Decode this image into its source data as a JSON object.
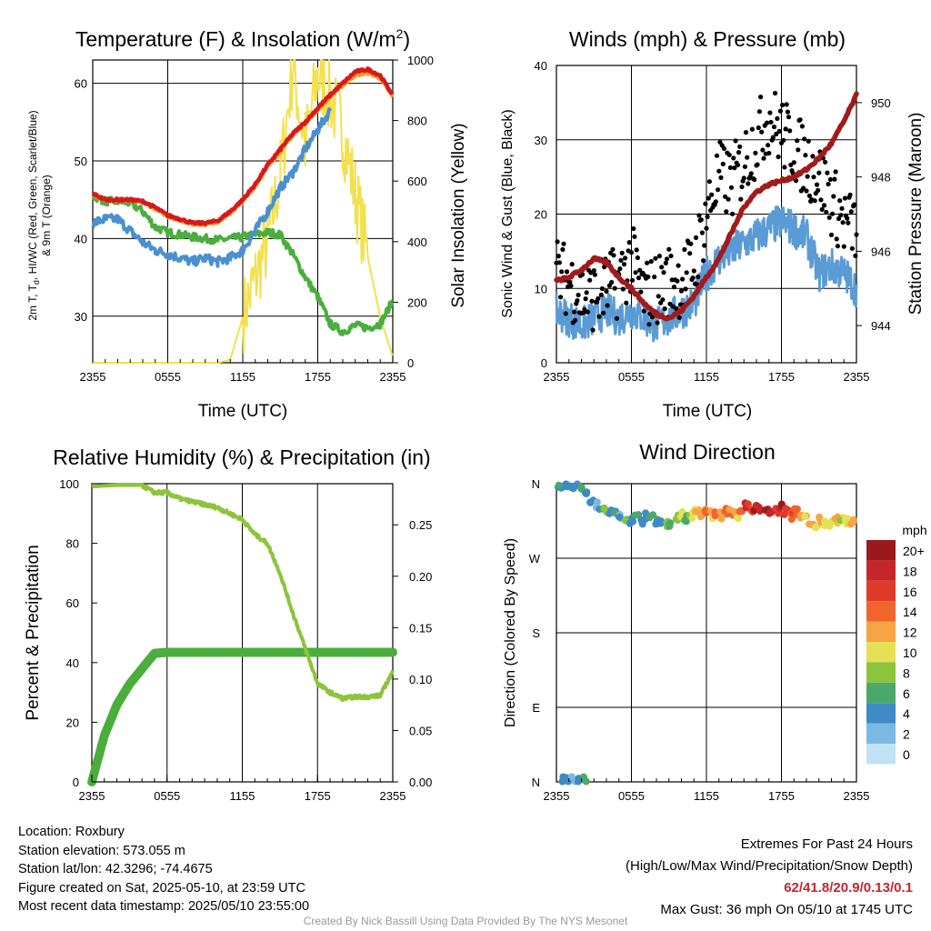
{
  "colors": {
    "air_temp": "#d7191c",
    "heat_index": "#e63b1f",
    "temp_9m": "#f59a23",
    "dewpoint": "#4aae3d",
    "wind_chill_blue": "#4a90d0",
    "insolation": "#f4e04d",
    "sonic_wind": "#5b9bd5",
    "gust": "#000000",
    "pressure": "#a31a1a",
    "rh": "#8cc43c",
    "precip": "#4aae3d"
  },
  "panels": {
    "temp": {
      "title": "Temperature (F) & Insolation (W/m²)",
      "ylabel_left_line1": "2m T, Td, HI/WC (Red, Green, Scarlet/Blue)",
      "ylabel_left_line2": "& 9m T (Orange)",
      "ylabel_right": "Solar Insolation (Yellow)",
      "xlabel": "Time (UTC)"
    },
    "wind": {
      "title": "Winds (mph) & Pressure (mb)",
      "ylabel_left": "Sonic Wind & Gust (Blue, Black)",
      "ylabel_right": "Station Pressure (Maroon)",
      "xlabel": "Time (UTC)"
    },
    "rh": {
      "title": "Relative Humidity (%) & Precipitation (in)",
      "ylabel_left": "Percent & Precipitation"
    },
    "dir": {
      "title": "Wind Direction",
      "ylabel_left": "Direction (Colored By Speed)",
      "legend_unit": "mph"
    }
  },
  "chart_data": [
    {
      "type": "line",
      "title": "Temperature (F) & Insolation (W/m²)",
      "xlabel": "Time (UTC)",
      "x_ticks": [
        "2355",
        "0555",
        "1155",
        "1755",
        "2355"
      ],
      "xlim": [
        0,
        24
      ],
      "ylim": [
        24,
        63
      ],
      "yticks": [
        30,
        40,
        50,
        60
      ],
      "y2lim": [
        0,
        1000
      ],
      "y2ticks": [
        0,
        200,
        400,
        600,
        800,
        1000
      ],
      "x": [
        0,
        1,
        2,
        3,
        4,
        5,
        6,
        7,
        8,
        9,
        10,
        11,
        12,
        13,
        14,
        15,
        16,
        17,
        18,
        19,
        20,
        21,
        22,
        23,
        24
      ],
      "series": [
        {
          "name": "2m T (Red)",
          "values": [
            45.8,
            45.0,
            45.0,
            45.0,
            44.8,
            44.0,
            43.0,
            42.5,
            42.0,
            42.0,
            42.3,
            43.5,
            45.0,
            47.0,
            49.5,
            51.5,
            53.5,
            55.0,
            56.8,
            58.5,
            60.0,
            61.5,
            61.8,
            61.0,
            58.5
          ]
        },
        {
          "name": "9m T (Orange)",
          "values": [
            45.6,
            44.9,
            44.9,
            44.8,
            44.6,
            43.8,
            42.8,
            42.3,
            41.8,
            41.8,
            42.1,
            43.2,
            44.7,
            46.7,
            49.2,
            51.2,
            53.2,
            54.8,
            56.5,
            58.2,
            59.7,
            61.0,
            61.3,
            60.6,
            58.2
          ]
        },
        {
          "name": "Td (Green)",
          "values": [
            45.5,
            44.8,
            44.8,
            44.6,
            43.5,
            41.5,
            40.8,
            40.5,
            40.2,
            40.0,
            39.8,
            40.0,
            40.2,
            40.5,
            40.8,
            40.5,
            38.0,
            35.0,
            32.5,
            29.0,
            28.0,
            28.8,
            28.5,
            29.0,
            32.0
          ]
        },
        {
          "name": "HI/WC (Blue)",
          "values": [
            42.0,
            42.5,
            42.5,
            41.0,
            39.5,
            38.5,
            38.0,
            37.5,
            37.0,
            37.5,
            37.0,
            37.5,
            38.5,
            41.0,
            43.5,
            46.5,
            48.5,
            51.5,
            54.0,
            56.5,
            null,
            null,
            null,
            null,
            57.5
          ]
        },
        {
          "name": "Solar Insolation (Yellow)",
          "axis": "right",
          "values": [
            0,
            0,
            0,
            0,
            0,
            0,
            0,
            0,
            0,
            0,
            0,
            10,
            150,
            280,
            400,
            620,
            980,
            720,
            950,
            880,
            760,
            560,
            350,
            150,
            20
          ]
        }
      ]
    },
    {
      "type": "line",
      "title": "Winds (mph) & Pressure (mb)",
      "xlabel": "Time (UTC)",
      "x_ticks": [
        "2355",
        "0555",
        "1155",
        "1755",
        "2355"
      ],
      "xlim": [
        0,
        24
      ],
      "ylim": [
        0,
        40
      ],
      "yticks": [
        0,
        10,
        20,
        30,
        40
      ],
      "y2lim": [
        943,
        951
      ],
      "y2ticks": [
        944,
        946,
        948,
        950
      ],
      "x": [
        0,
        1,
        2,
        3,
        4,
        5,
        6,
        7,
        8,
        9,
        10,
        11,
        12,
        13,
        14,
        15,
        16,
        17,
        18,
        19,
        20,
        21,
        22,
        23,
        24
      ],
      "series": [
        {
          "name": "Sonic Wind (Blue)",
          "values": [
            7,
            6,
            5,
            6,
            7,
            6,
            7,
            6,
            5,
            6,
            7,
            8,
            12,
            14,
            15,
            16,
            17,
            18,
            19,
            18,
            17,
            12,
            13,
            12,
            10
          ]
        },
        {
          "name": "Gust (Black)",
          "values": [
            12,
            11,
            9,
            9,
            10,
            11,
            14,
            9,
            10,
            11,
            11,
            13,
            20,
            25,
            24,
            27,
            30,
            33,
            31,
            29,
            27,
            25,
            22,
            19,
            18
          ]
        },
        {
          "name": "Station Pressure (Maroon)",
          "axis": "right",
          "values": [
            945.2,
            945.3,
            945.5,
            945.8,
            945.7,
            945.3,
            945.0,
            944.6,
            944.3,
            944.2,
            944.4,
            944.8,
            945.3,
            945.8,
            946.5,
            947.2,
            947.6,
            947.8,
            947.9,
            948.0,
            948.2,
            948.5,
            948.9,
            949.5,
            950.2
          ]
        }
      ]
    },
    {
      "type": "line",
      "title": "Relative Humidity (%) & Precipitation (in)",
      "x_ticks": [
        "2355",
        "0555",
        "1155",
        "1755",
        "2355"
      ],
      "xlim": [
        0,
        24
      ],
      "ylim": [
        0,
        100
      ],
      "yticks": [
        0,
        20,
        40,
        60,
        80,
        100
      ],
      "y2lim": [
        0,
        0.29
      ],
      "y2ticks": [
        "0.00",
        "0.05",
        "0.10",
        "0.15",
        "0.20",
        "0.25"
      ],
      "x": [
        0,
        1,
        2,
        3,
        4,
        5,
        6,
        7,
        8,
        9,
        10,
        11,
        12,
        13,
        14,
        15,
        16,
        17,
        18,
        19,
        20,
        21,
        22,
        23,
        24
      ],
      "series": [
        {
          "name": "Relative Humidity",
          "values": [
            99,
            99.3,
            99.5,
            99.5,
            99.5,
            97,
            97,
            95,
            94,
            93,
            92,
            90,
            88,
            83,
            80,
            70,
            57,
            45,
            33,
            30,
            28,
            28.5,
            28.5,
            29,
            37
          ]
        },
        {
          "name": "Precipitation",
          "axis": "right",
          "values": [
            0,
            0.045,
            0.075,
            0.095,
            0.11,
            0.125,
            0.126,
            0.126,
            0.126,
            0.126,
            0.126,
            0.126,
            0.126,
            0.126,
            0.126,
            0.126,
            0.126,
            0.126,
            0.126,
            0.126,
            0.126,
            0.126,
            0.126,
            0.126,
            0.126
          ]
        }
      ]
    },
    {
      "type": "scatter",
      "title": "Wind Direction",
      "ylabel": "Direction (Colored By Speed)",
      "x_ticks": [
        "2355",
        "0555",
        "1155",
        "1755",
        "2355"
      ],
      "xlim": [
        0,
        24
      ],
      "y_ticks": [
        "N",
        "W",
        "S",
        "E",
        "N"
      ],
      "y_tick_degrees": [
        360,
        270,
        180,
        90,
        0
      ],
      "points": [
        {
          "x": 0.3,
          "dir": 359,
          "speed": 6
        },
        {
          "x": 0.8,
          "dir": 358,
          "speed": 5
        },
        {
          "x": 1.2,
          "dir": 357,
          "speed": 6
        },
        {
          "x": 1.6,
          "dir": 356,
          "speed": 4
        },
        {
          "x": 2.0,
          "dir": 354,
          "speed": 7
        },
        {
          "x": 2.4,
          "dir": 352,
          "speed": 5
        },
        {
          "x": 0.4,
          "dir": 2,
          "speed": 6
        },
        {
          "x": 0.9,
          "dir": 1,
          "speed": 5
        },
        {
          "x": 1.4,
          "dir": 2,
          "speed": 4
        },
        {
          "x": 1.9,
          "dir": 1,
          "speed": 6
        },
        {
          "x": 2.3,
          "dir": 1,
          "speed": 7
        },
        {
          "x": 2.8,
          "dir": 340,
          "speed": 5
        },
        {
          "x": 3.2,
          "dir": 335,
          "speed": 4
        },
        {
          "x": 3.6,
          "dir": 328,
          "speed": 6
        },
        {
          "x": 4.0,
          "dir": 330,
          "speed": 9
        },
        {
          "x": 4.4,
          "dir": 325,
          "speed": 5
        },
        {
          "x": 4.8,
          "dir": 322,
          "speed": 6
        },
        {
          "x": 5.2,
          "dir": 318,
          "speed": 4
        },
        {
          "x": 5.6,
          "dir": 320,
          "speed": 8
        },
        {
          "x": 6.0,
          "dir": 316,
          "speed": 5
        },
        {
          "x": 6.4,
          "dir": 318,
          "speed": 7
        },
        {
          "x": 6.8,
          "dir": 314,
          "speed": 6
        },
        {
          "x": 7.2,
          "dir": 320,
          "speed": 5
        },
        {
          "x": 7.6,
          "dir": 318,
          "speed": 7
        },
        {
          "x": 8.0,
          "dir": 315,
          "speed": 6
        },
        {
          "x": 8.4,
          "dir": 316,
          "speed": 5
        },
        {
          "x": 8.8,
          "dir": 312,
          "speed": 9
        },
        {
          "x": 9.2,
          "dir": 308,
          "speed": 8
        },
        {
          "x": 9.6,
          "dir": 318,
          "speed": 9
        },
        {
          "x": 10.0,
          "dir": 322,
          "speed": 10
        },
        {
          "x": 10.4,
          "dir": 318,
          "speed": 7
        },
        {
          "x": 10.8,
          "dir": 322,
          "speed": 10
        },
        {
          "x": 11.2,
          "dir": 326,
          "speed": 12
        },
        {
          "x": 11.6,
          "dir": 322,
          "speed": 13
        },
        {
          "x": 12.0,
          "dir": 325,
          "speed": 14
        },
        {
          "x": 12.4,
          "dir": 322,
          "speed": 12
        },
        {
          "x": 12.8,
          "dir": 326,
          "speed": 15
        },
        {
          "x": 13.2,
          "dir": 322,
          "speed": 13
        },
        {
          "x": 13.6,
          "dir": 328,
          "speed": 16
        },
        {
          "x": 14.0,
          "dir": 325,
          "speed": 14
        },
        {
          "x": 14.4,
          "dir": 322,
          "speed": 12
        },
        {
          "x": 14.8,
          "dir": 328,
          "speed": 15
        },
        {
          "x": 15.2,
          "dir": 332,
          "speed": 18
        },
        {
          "x": 15.6,
          "dir": 326,
          "speed": 16
        },
        {
          "x": 16.0,
          "dir": 330,
          "speed": 20
        },
        {
          "x": 16.4,
          "dir": 327,
          "speed": 18
        },
        {
          "x": 16.8,
          "dir": 332,
          "speed": 20
        },
        {
          "x": 17.2,
          "dir": 326,
          "speed": 19
        },
        {
          "x": 17.6,
          "dir": 329,
          "speed": 17
        },
        {
          "x": 18.0,
          "dir": 333,
          "speed": 20
        },
        {
          "x": 18.4,
          "dir": 326,
          "speed": 18
        },
        {
          "x": 18.8,
          "dir": 322,
          "speed": 16
        },
        {
          "x": 19.2,
          "dir": 325,
          "speed": 15
        },
        {
          "x": 19.6,
          "dir": 320,
          "speed": 13
        },
        {
          "x": 20.0,
          "dir": 318,
          "speed": 12
        },
        {
          "x": 20.4,
          "dir": 315,
          "speed": 14
        },
        {
          "x": 20.8,
          "dir": 312,
          "speed": 12
        },
        {
          "x": 21.2,
          "dir": 315,
          "speed": 13
        },
        {
          "x": 21.6,
          "dir": 310,
          "speed": 11
        },
        {
          "x": 22.0,
          "dir": 312,
          "speed": 12
        },
        {
          "x": 22.4,
          "dir": 315,
          "speed": 13
        },
        {
          "x": 22.8,
          "dir": 318,
          "speed": 10
        },
        {
          "x": 23.2,
          "dir": 313,
          "speed": 11
        },
        {
          "x": 23.6,
          "dir": 316,
          "speed": 12
        }
      ]
    }
  ],
  "legend": {
    "unit": "mph",
    "bins": [
      {
        "label": "20+",
        "color": "#99191c"
      },
      {
        "label": "18",
        "color": "#c4262b"
      },
      {
        "label": "16",
        "color": "#e03a2a"
      },
      {
        "label": "14",
        "color": "#f0642e"
      },
      {
        "label": "12",
        "color": "#f7a444"
      },
      {
        "label": "10",
        "color": "#e6e054"
      },
      {
        "label": "8",
        "color": "#8cc43c"
      },
      {
        "label": "6",
        "color": "#4aa86a"
      },
      {
        "label": "4",
        "color": "#3f8ac4"
      },
      {
        "label": "2",
        "color": "#7ab9e3"
      },
      {
        "label": "0",
        "color": "#bfe3f5"
      }
    ]
  },
  "footer": {
    "location": "Location: Roxbury",
    "elevation": "Station elevation: 573.055 m",
    "latlon": "Station lat/lon: 42.3296; -74.4675",
    "created": "Figure created on Sat, 2025-05-10, at 23:59 UTC",
    "recent": "Most recent data timestamp: 2025/05/10 23:55:00",
    "extremes_title": "Extremes For Past 24 Hours",
    "extremes_subtitle": "(High/Low/Max Wind/Precipitation/Snow Depth)",
    "extremes_values": "62/41.8/20.9/0.13/0.1",
    "max_gust": "Max Gust: 36 mph On 05/10 at 1745 UTC",
    "credit": "Created By Nick Bassill Using Data Provided By The NYS Mesonet"
  }
}
